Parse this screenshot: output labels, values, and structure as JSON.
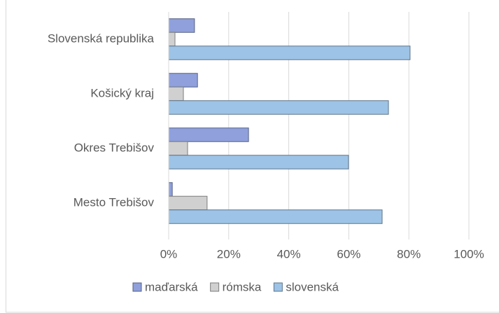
{
  "chart_data": {
    "type": "bar",
    "orientation": "horizontal",
    "categories": [
      "Slovenská republika",
      "Košický kraj",
      "Okres Trebišov",
      "Mesto Trebišov"
    ],
    "series": [
      {
        "name": "maďarská",
        "color": "#8fa0dc",
        "values": [
          8.6,
          9.6,
          26.6,
          1.2
        ]
      },
      {
        "name": "rómska",
        "color": "#d0d0d0",
        "values": [
          2.1,
          4.9,
          6.3,
          12.8
        ]
      },
      {
        "name": "slovenská",
        "color": "#9dc3e6",
        "values": [
          80.4,
          73.2,
          59.9,
          71.1
        ]
      }
    ],
    "xlim": [
      0,
      100
    ],
    "xticks": [
      {
        "value": 0,
        "label": "0%"
      },
      {
        "value": 20,
        "label": "20%"
      },
      {
        "value": 40,
        "label": "40%"
      },
      {
        "value": 60,
        "label": "60%"
      },
      {
        "value": 80,
        "label": "80%"
      },
      {
        "value": 100,
        "label": "100%"
      }
    ],
    "grid": true,
    "legend": "bottom"
  }
}
